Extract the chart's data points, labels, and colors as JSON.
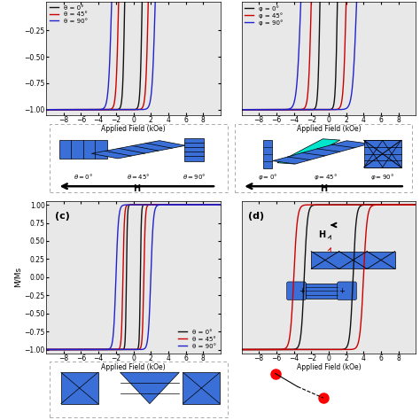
{
  "xlabel": "Applied Field (kOe)",
  "ylabel": "M/Ms",
  "colors": {
    "black": "#111111",
    "red": "#cc0000",
    "blue": "#2222cc"
  },
  "legend_a": [
    "θ = 0°",
    "θ = 45°",
    "θ = 90°"
  ],
  "legend_b": [
    "φ = 0°",
    "φ = 45°",
    "φ = 90°"
  ],
  "legend_c": [
    "θ = 0°",
    "θ = 45°",
    "θ = 90°"
  ],
  "panel_c": "(c)",
  "panel_d": "(d)",
  "blue_fill": "#3a6fd8",
  "cyan_fill": "#00e5cc",
  "panel_bg": "#e8e8e8"
}
